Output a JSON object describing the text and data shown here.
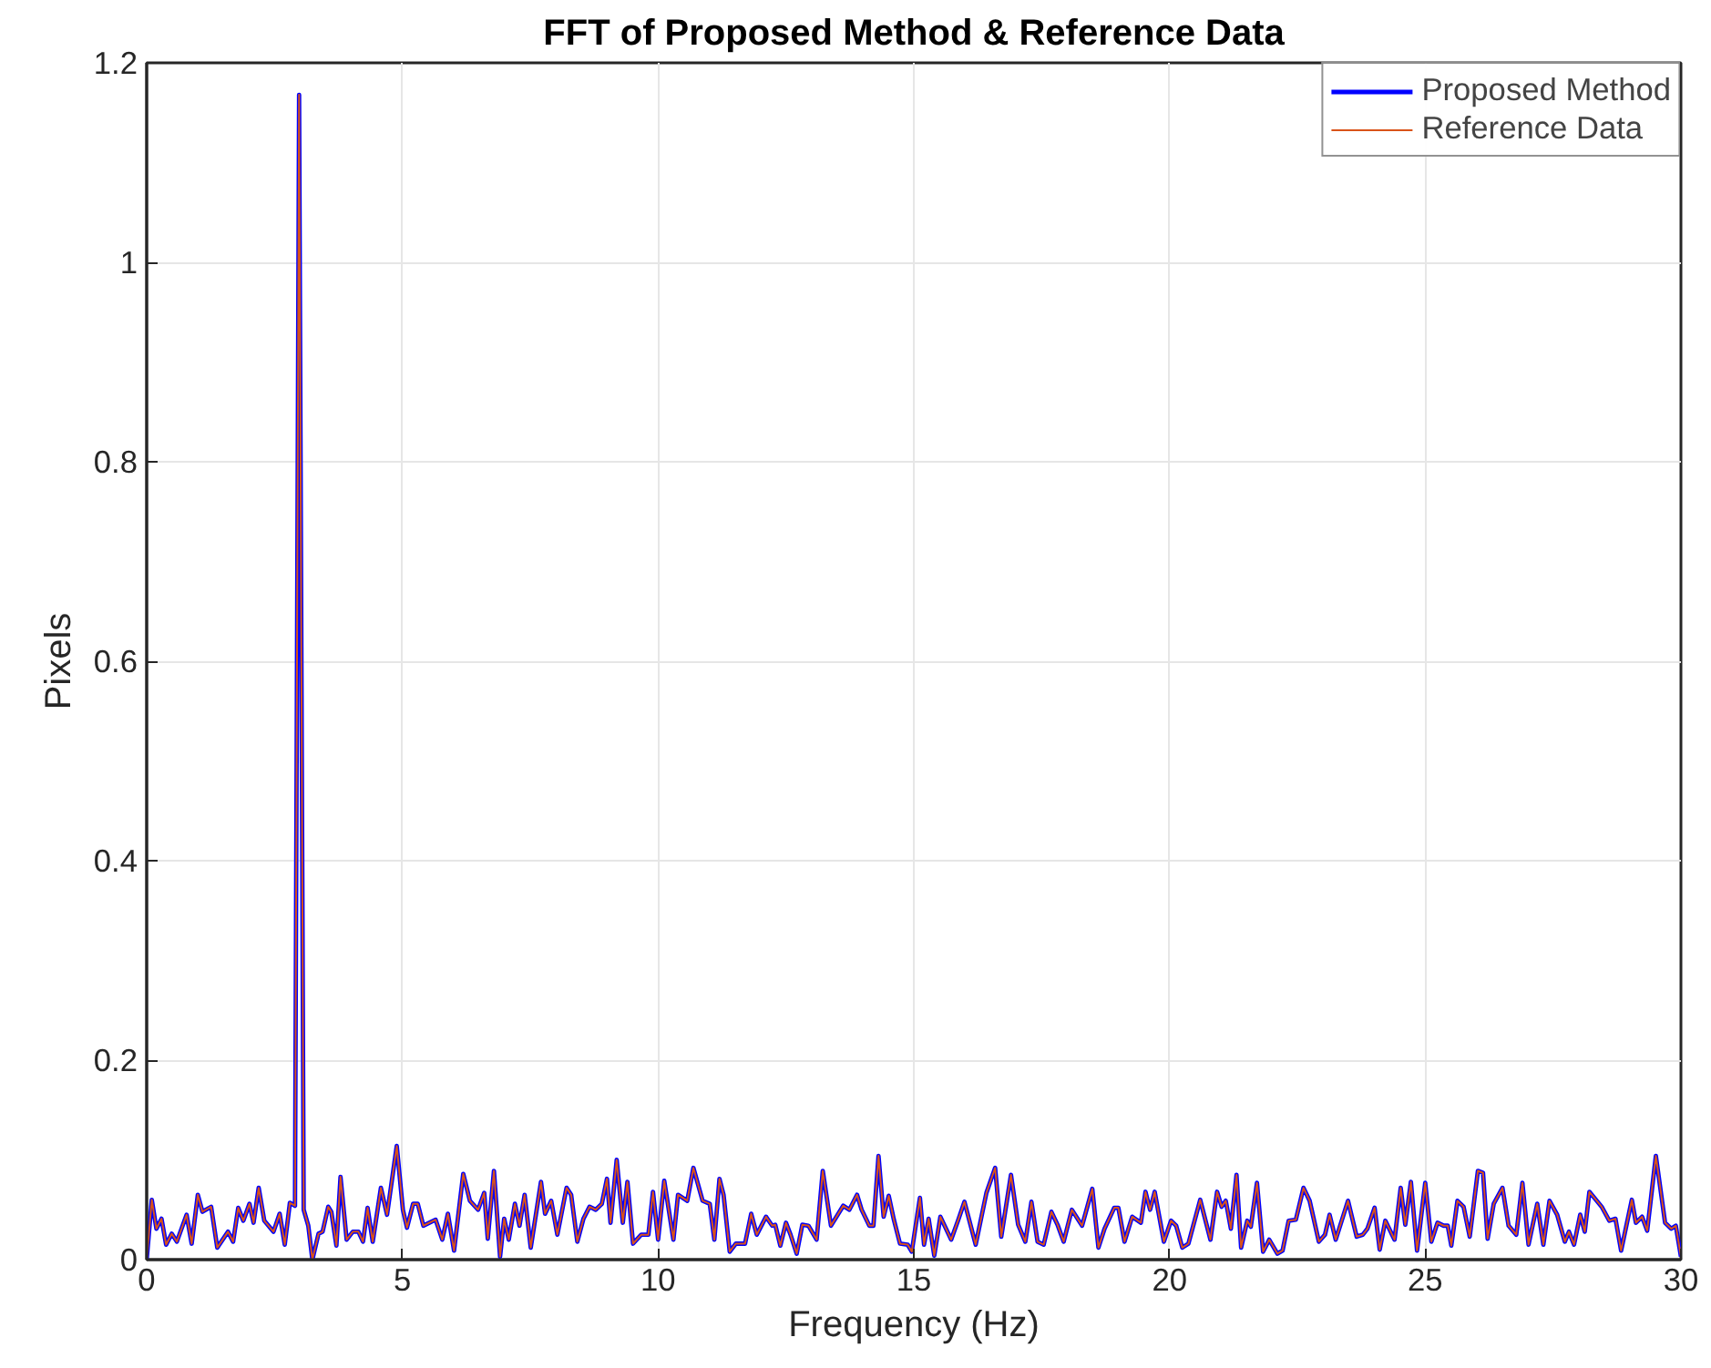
{
  "chart_data": {
    "type": "line",
    "title": "FFT of Proposed Method & Reference Data",
    "xlabel": "Frequency (Hz)",
    "ylabel": "Pixels",
    "x": [
      0,
      0.1,
      0.19,
      0.29,
      0.38,
      0.49,
      0.59,
      0.78,
      0.88,
      1.0,
      1.09,
      1.26,
      1.38,
      1.59,
      1.69,
      1.79,
      1.89,
      2.01,
      2.09,
      2.19,
      2.3,
      2.48,
      2.6,
      2.7,
      2.8,
      2.9,
      2.98,
      3.07,
      3.16,
      3.24,
      3.36,
      3.44,
      3.55,
      3.61,
      3.71,
      3.79,
      3.91,
      4.03,
      4.14,
      4.23,
      4.32,
      4.42,
      4.58,
      4.7,
      4.89,
      5.01,
      5.09,
      5.21,
      5.3,
      5.41,
      5.65,
      5.78,
      5.89,
      6.01,
      6.19,
      6.32,
      6.48,
      6.6,
      6.67,
      6.79,
      6.91,
      6.99,
      7.08,
      7.2,
      7.29,
      7.39,
      7.51,
      7.71,
      7.79,
      7.91,
      8.03,
      8.21,
      8.3,
      8.42,
      8.54,
      8.66,
      8.78,
      8.9,
      9.0,
      9.07,
      9.19,
      9.31,
      9.4,
      9.51,
      9.67,
      9.81,
      9.9,
      10.0,
      10.12,
      10.3,
      10.39,
      10.57,
      10.69,
      10.87,
      11.01,
      11.1,
      11.2,
      11.28,
      11.4,
      11.52,
      11.7,
      11.82,
      11.93,
      12.11,
      12.23,
      12.29,
      12.39,
      12.5,
      12.59,
      12.71,
      12.82,
      12.94,
      13.1,
      13.22,
      13.38,
      13.62,
      13.74,
      13.89,
      13.98,
      14.13,
      14.21,
      14.31,
      14.41,
      14.51,
      14.61,
      14.73,
      14.88,
      14.96,
      15.12,
      15.2,
      15.29,
      15.4,
      15.52,
      15.73,
      15.87,
      15.99,
      16.21,
      16.42,
      16.59,
      16.71,
      16.9,
      17.04,
      17.18,
      17.3,
      17.42,
      17.54,
      17.69,
      17.81,
      17.93,
      18.09,
      18.29,
      18.49,
      18.61,
      18.73,
      18.92,
      19.0,
      19.12,
      19.27,
      19.44,
      19.53,
      19.62,
      19.71,
      19.89,
      20.03,
      20.13,
      20.25,
      20.37,
      20.6,
      20.8,
      20.93,
      21.02,
      21.1,
      21.2,
      21.31,
      21.4,
      21.52,
      21.59,
      21.71,
      21.83,
      21.95,
      22.11,
      22.21,
      22.33,
      22.47,
      22.62,
      22.74,
      22.92,
      23.04,
      23.13,
      23.25,
      23.49,
      23.66,
      23.78,
      23.87,
      24.01,
      24.11,
      24.22,
      24.4,
      24.52,
      24.61,
      24.72,
      24.84,
      25.0,
      25.12,
      25.24,
      25.36,
      25.44,
      25.51,
      25.63,
      25.75,
      25.87,
      26.03,
      26.13,
      26.22,
      26.34,
      26.51,
      26.63,
      26.78,
      26.9,
      27.02,
      27.19,
      27.31,
      27.43,
      27.58,
      27.73,
      27.81,
      27.91,
      28.03,
      28.12,
      28.21,
      28.45,
      28.6,
      28.72,
      28.83,
      29.04,
      29.12,
      29.24,
      29.34,
      29.51,
      29.69,
      29.81,
      29.9,
      30.0
    ],
    "series": [
      {
        "name": "Proposed Method",
        "color": "#0000ff",
        "values": [
          0.0,
          0.06,
          0.031,
          0.041,
          0.015,
          0.026,
          0.018,
          0.045,
          0.016,
          0.065,
          0.048,
          0.053,
          0.012,
          0.028,
          0.018,
          0.052,
          0.039,
          0.056,
          0.037,
          0.072,
          0.039,
          0.028,
          0.046,
          0.015,
          0.057,
          0.054,
          1.168,
          0.05,
          0.034,
          0.0,
          0.026,
          0.028,
          0.053,
          0.048,
          0.014,
          0.083,
          0.02,
          0.028,
          0.028,
          0.018,
          0.052,
          0.018,
          0.072,
          0.045,
          0.114,
          0.05,
          0.032,
          0.056,
          0.056,
          0.034,
          0.04,
          0.02,
          0.046,
          0.009,
          0.086,
          0.059,
          0.05,
          0.067,
          0.021,
          0.089,
          0.003,
          0.041,
          0.02,
          0.056,
          0.034,
          0.065,
          0.012,
          0.078,
          0.046,
          0.059,
          0.025,
          0.072,
          0.065,
          0.018,
          0.041,
          0.053,
          0.05,
          0.056,
          0.081,
          0.037,
          0.1,
          0.037,
          0.078,
          0.016,
          0.025,
          0.025,
          0.068,
          0.02,
          0.079,
          0.02,
          0.065,
          0.059,
          0.092,
          0.059,
          0.056,
          0.02,
          0.081,
          0.065,
          0.008,
          0.016,
          0.016,
          0.046,
          0.025,
          0.043,
          0.034,
          0.035,
          0.014,
          0.037,
          0.025,
          0.006,
          0.035,
          0.034,
          0.02,
          0.089,
          0.034,
          0.054,
          0.05,
          0.065,
          0.05,
          0.034,
          0.034,
          0.104,
          0.043,
          0.064,
          0.04,
          0.016,
          0.015,
          0.008,
          0.062,
          0.015,
          0.041,
          0.004,
          0.043,
          0.02,
          0.04,
          0.058,
          0.015,
          0.067,
          0.092,
          0.023,
          0.085,
          0.035,
          0.018,
          0.058,
          0.018,
          0.015,
          0.048,
          0.035,
          0.018,
          0.05,
          0.034,
          0.071,
          0.012,
          0.031,
          0.052,
          0.052,
          0.018,
          0.043,
          0.037,
          0.068,
          0.05,
          0.068,
          0.018,
          0.039,
          0.034,
          0.012,
          0.016,
          0.06,
          0.02,
          0.068,
          0.053,
          0.059,
          0.031,
          0.085,
          0.012,
          0.039,
          0.033,
          0.077,
          0.008,
          0.02,
          0.006,
          0.009,
          0.039,
          0.04,
          0.072,
          0.059,
          0.018,
          0.025,
          0.045,
          0.02,
          0.059,
          0.023,
          0.025,
          0.031,
          0.052,
          0.01,
          0.039,
          0.02,
          0.072,
          0.035,
          0.078,
          0.009,
          0.077,
          0.018,
          0.037,
          0.034,
          0.034,
          0.014,
          0.059,
          0.053,
          0.023,
          0.089,
          0.087,
          0.021,
          0.056,
          0.072,
          0.034,
          0.025,
          0.077,
          0.015,
          0.056,
          0.015,
          0.059,
          0.045,
          0.018,
          0.028,
          0.015,
          0.045,
          0.028,
          0.068,
          0.053,
          0.039,
          0.041,
          0.009,
          0.06,
          0.037,
          0.043,
          0.029,
          0.104,
          0.037,
          0.031,
          0.034,
          0.003
        ]
      },
      {
        "name": "Reference Data",
        "color": "#d95319",
        "values": [
          0.0,
          0.06,
          0.031,
          0.041,
          0.015,
          0.026,
          0.018,
          0.045,
          0.016,
          0.065,
          0.048,
          0.053,
          0.012,
          0.028,
          0.018,
          0.052,
          0.039,
          0.056,
          0.037,
          0.072,
          0.039,
          0.028,
          0.046,
          0.015,
          0.057,
          0.054,
          1.168,
          0.05,
          0.034,
          0.0,
          0.026,
          0.028,
          0.053,
          0.048,
          0.014,
          0.083,
          0.02,
          0.028,
          0.028,
          0.018,
          0.052,
          0.018,
          0.072,
          0.045,
          0.114,
          0.05,
          0.032,
          0.056,
          0.056,
          0.034,
          0.04,
          0.02,
          0.046,
          0.009,
          0.086,
          0.059,
          0.05,
          0.067,
          0.021,
          0.089,
          0.003,
          0.041,
          0.02,
          0.056,
          0.034,
          0.065,
          0.012,
          0.078,
          0.046,
          0.059,
          0.025,
          0.072,
          0.065,
          0.018,
          0.041,
          0.053,
          0.05,
          0.056,
          0.081,
          0.037,
          0.1,
          0.037,
          0.078,
          0.016,
          0.025,
          0.025,
          0.068,
          0.02,
          0.079,
          0.02,
          0.065,
          0.059,
          0.092,
          0.059,
          0.056,
          0.02,
          0.081,
          0.065,
          0.008,
          0.016,
          0.016,
          0.046,
          0.025,
          0.043,
          0.034,
          0.035,
          0.014,
          0.037,
          0.025,
          0.006,
          0.035,
          0.034,
          0.02,
          0.089,
          0.034,
          0.054,
          0.05,
          0.065,
          0.05,
          0.034,
          0.034,
          0.104,
          0.043,
          0.064,
          0.04,
          0.016,
          0.015,
          0.008,
          0.062,
          0.015,
          0.041,
          0.004,
          0.043,
          0.02,
          0.04,
          0.058,
          0.015,
          0.067,
          0.092,
          0.023,
          0.085,
          0.035,
          0.018,
          0.058,
          0.018,
          0.015,
          0.048,
          0.035,
          0.018,
          0.05,
          0.034,
          0.071,
          0.012,
          0.031,
          0.052,
          0.052,
          0.018,
          0.043,
          0.037,
          0.068,
          0.05,
          0.068,
          0.018,
          0.039,
          0.034,
          0.012,
          0.016,
          0.06,
          0.02,
          0.068,
          0.053,
          0.059,
          0.031,
          0.085,
          0.012,
          0.039,
          0.033,
          0.077,
          0.008,
          0.02,
          0.006,
          0.009,
          0.039,
          0.04,
          0.072,
          0.059,
          0.018,
          0.025,
          0.045,
          0.02,
          0.059,
          0.023,
          0.025,
          0.031,
          0.052,
          0.01,
          0.039,
          0.02,
          0.072,
          0.035,
          0.078,
          0.009,
          0.077,
          0.018,
          0.037,
          0.034,
          0.034,
          0.014,
          0.059,
          0.053,
          0.023,
          0.089,
          0.087,
          0.021,
          0.056,
          0.072,
          0.034,
          0.025,
          0.077,
          0.015,
          0.056,
          0.015,
          0.059,
          0.045,
          0.018,
          0.028,
          0.015,
          0.045,
          0.028,
          0.068,
          0.053,
          0.039,
          0.041,
          0.009,
          0.06,
          0.037,
          0.043,
          0.029,
          0.104,
          0.037,
          0.031,
          0.034,
          0.003
        ]
      }
    ],
    "xlim": [
      0,
      30
    ],
    "ylim": [
      0,
      1.2
    ],
    "xticks": [
      0,
      5,
      10,
      15,
      20,
      25,
      30
    ],
    "yticks": [
      0,
      0.2,
      0.4,
      0.6,
      0.8,
      1,
      1.2
    ],
    "grid": true,
    "legend": "top right",
    "line_style": "solid",
    "marker": "none"
  }
}
